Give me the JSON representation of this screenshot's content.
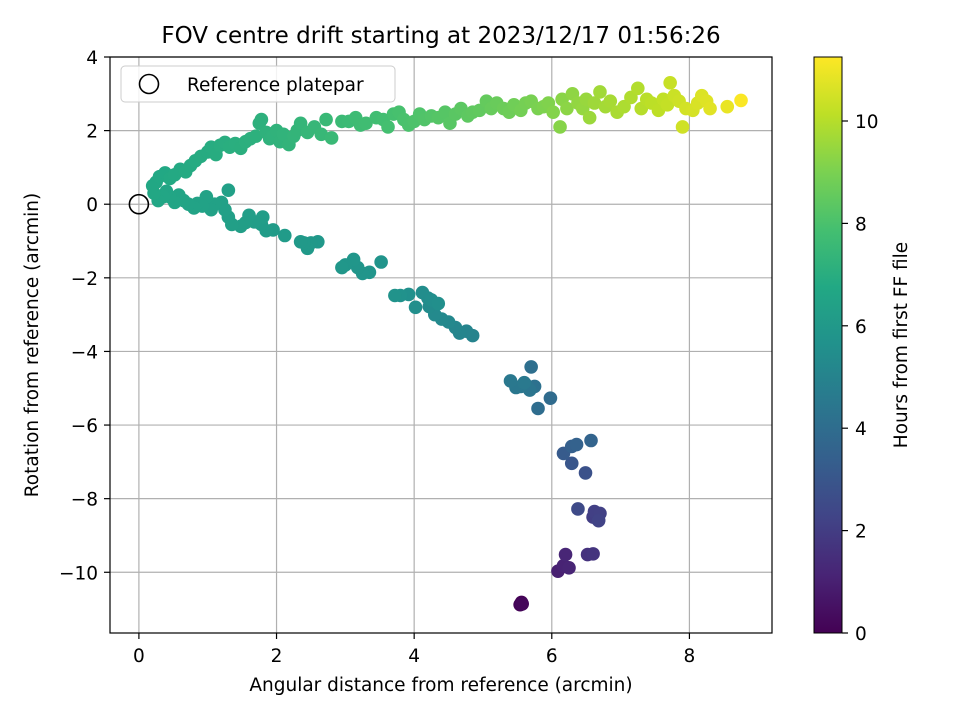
{
  "chart_data": {
    "type": "scatter",
    "title": "FOV centre drift starting at 2023/12/17 01:56:26",
    "xlabel": "Angular distance from reference (arcmin)",
    "ylabel": "Rotation from reference (arcmin)",
    "xlim": [
      -0.42,
      9.2
    ],
    "ylim": [
      -11.65,
      4.0
    ],
    "xticks": [
      0,
      2,
      4,
      6,
      8
    ],
    "yticks": [
      -10,
      -8,
      -6,
      -4,
      -2,
      0,
      2,
      4
    ],
    "xtick_labels": [
      "0",
      "2",
      "4",
      "6",
      "8"
    ],
    "ytick_labels": [
      "−10",
      "−8",
      "−6",
      "−4",
      "−2",
      "0",
      "2",
      "4"
    ],
    "grid": true,
    "legend": {
      "placement": "upper-left",
      "entries": [
        {
          "label": "Reference platepar",
          "marker": "open-circle"
        }
      ]
    },
    "reference_point": {
      "x": 0,
      "y": 0
    },
    "colorbar": {
      "label": "Hours from first FF file",
      "colormap": "viridis",
      "range": [
        0,
        11.25
      ],
      "ticks": [
        0,
        2,
        4,
        6,
        8,
        10
      ],
      "tick_labels": [
        "0",
        "2",
        "4",
        "6",
        "8",
        "10"
      ]
    },
    "points": [
      [
        5.56,
        -10.82,
        0.0
      ],
      [
        5.54,
        -10.88,
        0.1
      ],
      [
        5.57,
        -10.86,
        0.2
      ],
      [
        6.09,
        -9.97,
        1.0
      ],
      [
        6.17,
        -9.82,
        1.1
      ],
      [
        6.25,
        -9.88,
        1.15
      ],
      [
        6.2,
        -9.52,
        1.2
      ],
      [
        6.52,
        -9.52,
        1.6
      ],
      [
        6.6,
        -9.5,
        1.7
      ],
      [
        6.68,
        -8.58,
        2.0
      ],
      [
        6.6,
        -8.5,
        2.05
      ],
      [
        6.62,
        -8.35,
        2.1
      ],
      [
        6.7,
        -8.4,
        2.15
      ],
      [
        6.68,
        -8.6,
        2.2
      ],
      [
        6.38,
        -8.28,
        2.5
      ],
      [
        6.49,
        -7.3,
        2.8
      ],
      [
        6.29,
        -7.04,
        3.0
      ],
      [
        6.17,
        -6.77,
        3.2
      ],
      [
        6.29,
        -6.58,
        3.4
      ],
      [
        6.36,
        -6.53,
        3.5
      ],
      [
        6.57,
        -6.42,
        3.6
      ],
      [
        5.98,
        -5.27,
        3.9
      ],
      [
        5.8,
        -5.55,
        4.0
      ],
      [
        5.7,
        -4.42,
        4.1
      ],
      [
        5.75,
        -4.95,
        4.2
      ],
      [
        5.63,
        -4.92,
        4.3
      ],
      [
        5.68,
        -5.05,
        4.35
      ],
      [
        5.55,
        -4.95,
        4.4
      ],
      [
        5.48,
        -4.98,
        4.45
      ],
      [
        5.4,
        -4.8,
        4.5
      ],
      [
        5.6,
        -4.85,
        4.55
      ],
      [
        4.85,
        -3.57,
        5.0
      ],
      [
        4.76,
        -3.45,
        5.05
      ],
      [
        4.66,
        -3.5,
        5.1
      ],
      [
        4.6,
        -3.35,
        5.15
      ],
      [
        4.5,
        -3.2,
        5.2
      ],
      [
        4.4,
        -3.12,
        5.25
      ],
      [
        4.3,
        -3.0,
        5.3
      ],
      [
        4.22,
        -2.78,
        5.35
      ],
      [
        4.2,
        -2.55,
        5.4
      ],
      [
        4.12,
        -2.4,
        5.45
      ],
      [
        4.25,
        -2.6,
        5.5
      ],
      [
        4.35,
        -2.7,
        5.52
      ],
      [
        4.02,
        -2.8,
        5.55
      ],
      [
        3.92,
        -2.45,
        5.6
      ],
      [
        3.8,
        -2.48,
        5.65
      ],
      [
        3.72,
        -2.48,
        5.7
      ],
      [
        3.52,
        -1.57,
        5.75
      ],
      [
        3.35,
        -1.85,
        5.8
      ],
      [
        3.25,
        -1.88,
        5.82
      ],
      [
        3.18,
        -1.72,
        5.84
      ],
      [
        3.12,
        -1.5,
        5.86
      ],
      [
        3.0,
        -1.65,
        5.88
      ],
      [
        2.95,
        -1.72,
        5.9
      ],
      [
        2.6,
        -1.02,
        5.95
      ],
      [
        2.5,
        -1.05,
        5.98
      ],
      [
        2.45,
        -1.2,
        6.0
      ],
      [
        2.4,
        -1.05,
        6.02
      ],
      [
        2.35,
        -1.02,
        6.04
      ],
      [
        2.12,
        -0.85,
        6.1
      ],
      [
        1.95,
        -0.7,
        6.13
      ],
      [
        1.85,
        -0.72,
        6.16
      ],
      [
        1.78,
        -0.55,
        6.18
      ],
      [
        1.8,
        -0.35,
        6.2
      ],
      [
        1.68,
        -0.48,
        6.22
      ],
      [
        1.6,
        -0.3,
        6.24
      ],
      [
        1.55,
        -0.5,
        6.26
      ],
      [
        1.48,
        -0.6,
        6.28
      ],
      [
        1.35,
        -0.55,
        6.3
      ],
      [
        1.3,
        -0.35,
        6.32
      ],
      [
        1.25,
        -0.15,
        6.34
      ],
      [
        1.3,
        0.38,
        6.36
      ],
      [
        1.2,
        0.05,
        6.38
      ],
      [
        1.1,
        0.0,
        6.4
      ],
      [
        1.05,
        -0.15,
        6.42
      ],
      [
        0.98,
        0.2,
        6.44
      ],
      [
        0.92,
        -0.05,
        6.46
      ],
      [
        0.85,
        0.02,
        6.48
      ],
      [
        0.8,
        -0.1,
        6.5
      ],
      [
        0.72,
        0.0,
        6.52
      ],
      [
        0.65,
        0.1,
        6.54
      ],
      [
        0.58,
        0.25,
        6.56
      ],
      [
        0.52,
        0.05,
        6.58
      ],
      [
        0.45,
        0.2,
        6.6
      ],
      [
        0.4,
        0.35,
        6.62
      ],
      [
        0.35,
        0.2,
        6.64
      ],
      [
        0.28,
        0.1,
        6.66
      ],
      [
        0.22,
        0.3,
        6.68
      ],
      [
        0.2,
        0.5,
        6.7
      ],
      [
        0.25,
        0.6,
        6.72
      ],
      [
        0.3,
        0.75,
        6.74
      ],
      [
        0.38,
        0.85,
        6.76
      ],
      [
        0.45,
        0.7,
        6.78
      ],
      [
        0.52,
        0.8,
        6.8
      ],
      [
        0.6,
        0.95,
        6.82
      ],
      [
        0.68,
        0.88,
        6.84
      ],
      [
        0.75,
        1.05,
        6.86
      ],
      [
        0.82,
        1.18,
        6.88
      ],
      [
        0.9,
        1.3,
        6.9
      ],
      [
        1.0,
        1.42,
        6.92
      ],
      [
        1.05,
        1.55,
        6.94
      ],
      [
        1.12,
        1.35,
        6.96
      ],
      [
        1.18,
        1.6,
        6.98
      ],
      [
        1.25,
        1.68,
        7.0
      ],
      [
        1.32,
        1.55,
        7.02
      ],
      [
        1.4,
        1.65,
        7.04
      ],
      [
        1.48,
        1.52,
        7.06
      ],
      [
        1.55,
        1.7,
        7.08
      ],
      [
        1.62,
        1.78,
        7.1
      ],
      [
        1.7,
        1.85,
        7.12
      ],
      [
        1.75,
        2.2,
        7.14
      ],
      [
        1.78,
        2.3,
        7.16
      ],
      [
        1.85,
        1.95,
        7.18
      ],
      [
        1.9,
        1.78,
        7.2
      ],
      [
        1.95,
        1.85,
        7.22
      ],
      [
        2.0,
        2.0,
        7.24
      ],
      [
        2.05,
        1.7,
        7.26
      ],
      [
        2.1,
        1.9,
        7.28
      ],
      [
        2.18,
        1.62,
        7.3
      ],
      [
        2.25,
        1.85,
        7.33
      ],
      [
        2.3,
        2.0,
        7.36
      ],
      [
        2.35,
        2.2,
        7.39
      ],
      [
        2.45,
        1.95,
        7.42
      ],
      [
        2.55,
        2.1,
        7.45
      ],
      [
        2.65,
        1.9,
        7.48
      ],
      [
        2.72,
        2.3,
        7.51
      ],
      [
        2.8,
        1.8,
        7.54
      ],
      [
        2.95,
        2.25,
        7.58
      ],
      [
        3.05,
        2.25,
        7.62
      ],
      [
        3.15,
        2.35,
        7.66
      ],
      [
        3.22,
        2.15,
        7.7
      ],
      [
        3.3,
        2.2,
        7.74
      ],
      [
        3.45,
        2.35,
        7.78
      ],
      [
        3.55,
        2.3,
        7.82
      ],
      [
        3.62,
        2.1,
        7.86
      ],
      [
        3.7,
        2.45,
        7.9
      ],
      [
        3.78,
        2.5,
        7.94
      ],
      [
        3.85,
        2.3,
        7.98
      ],
      [
        3.92,
        2.15,
        8.02
      ],
      [
        4.0,
        2.25,
        8.06
      ],
      [
        4.08,
        2.45,
        8.1
      ],
      [
        4.15,
        2.3,
        8.14
      ],
      [
        4.25,
        2.4,
        8.18
      ],
      [
        4.35,
        2.35,
        8.22
      ],
      [
        4.45,
        2.5,
        8.26
      ],
      [
        4.52,
        2.2,
        8.3
      ],
      [
        4.6,
        2.45,
        8.34
      ],
      [
        4.68,
        2.6,
        8.38
      ],
      [
        4.78,
        2.4,
        8.42
      ],
      [
        4.85,
        2.5,
        8.46
      ],
      [
        4.95,
        2.55,
        8.5
      ],
      [
        5.05,
        2.8,
        8.55
      ],
      [
        5.12,
        2.6,
        8.6
      ],
      [
        5.2,
        2.75,
        8.65
      ],
      [
        5.3,
        2.6,
        8.7
      ],
      [
        5.38,
        2.5,
        8.75
      ],
      [
        5.45,
        2.7,
        8.8
      ],
      [
        5.55,
        2.55,
        8.85
      ],
      [
        5.62,
        2.75,
        8.9
      ],
      [
        5.7,
        2.8,
        8.95
      ],
      [
        5.8,
        2.6,
        9.0
      ],
      [
        5.88,
        2.65,
        9.05
      ],
      [
        5.95,
        2.75,
        9.1
      ],
      [
        6.02,
        2.5,
        9.15
      ],
      [
        6.12,
        2.1,
        9.2
      ],
      [
        6.15,
        2.85,
        9.25
      ],
      [
        6.22,
        2.6,
        9.3
      ],
      [
        6.3,
        3.0,
        9.35
      ],
      [
        6.38,
        2.75,
        9.4
      ],
      [
        6.45,
        2.6,
        9.45
      ],
      [
        6.5,
        2.85,
        9.5
      ],
      [
        6.55,
        2.35,
        9.55
      ],
      [
        6.62,
        2.75,
        9.6
      ],
      [
        6.7,
        3.05,
        9.65
      ],
      [
        6.78,
        2.65,
        9.7
      ],
      [
        6.85,
        2.8,
        9.75
      ],
      [
        6.95,
        2.5,
        9.8
      ],
      [
        7.05,
        2.65,
        9.85
      ],
      [
        7.15,
        2.9,
        9.9
      ],
      [
        7.25,
        3.15,
        9.95
      ],
      [
        7.3,
        2.6,
        10.0
      ],
      [
        7.38,
        2.85,
        10.05
      ],
      [
        7.45,
        2.75,
        10.1
      ],
      [
        7.55,
        2.55,
        10.15
      ],
      [
        7.62,
        2.85,
        10.2
      ],
      [
        7.68,
        2.7,
        10.25
      ],
      [
        7.72,
        3.3,
        10.3
      ],
      [
        7.78,
        2.95,
        10.35
      ],
      [
        7.85,
        2.8,
        10.4
      ],
      [
        7.9,
        2.1,
        10.45
      ],
      [
        7.95,
        2.6,
        10.5
      ],
      [
        8.05,
        2.55,
        10.55
      ],
      [
        8.12,
        2.75,
        10.6
      ],
      [
        8.18,
        2.95,
        10.65
      ],
      [
        8.25,
        2.8,
        10.7
      ],
      [
        8.3,
        2.6,
        10.75
      ],
      [
        8.55,
        2.65,
        10.9
      ],
      [
        8.75,
        2.82,
        11.2
      ]
    ]
  }
}
